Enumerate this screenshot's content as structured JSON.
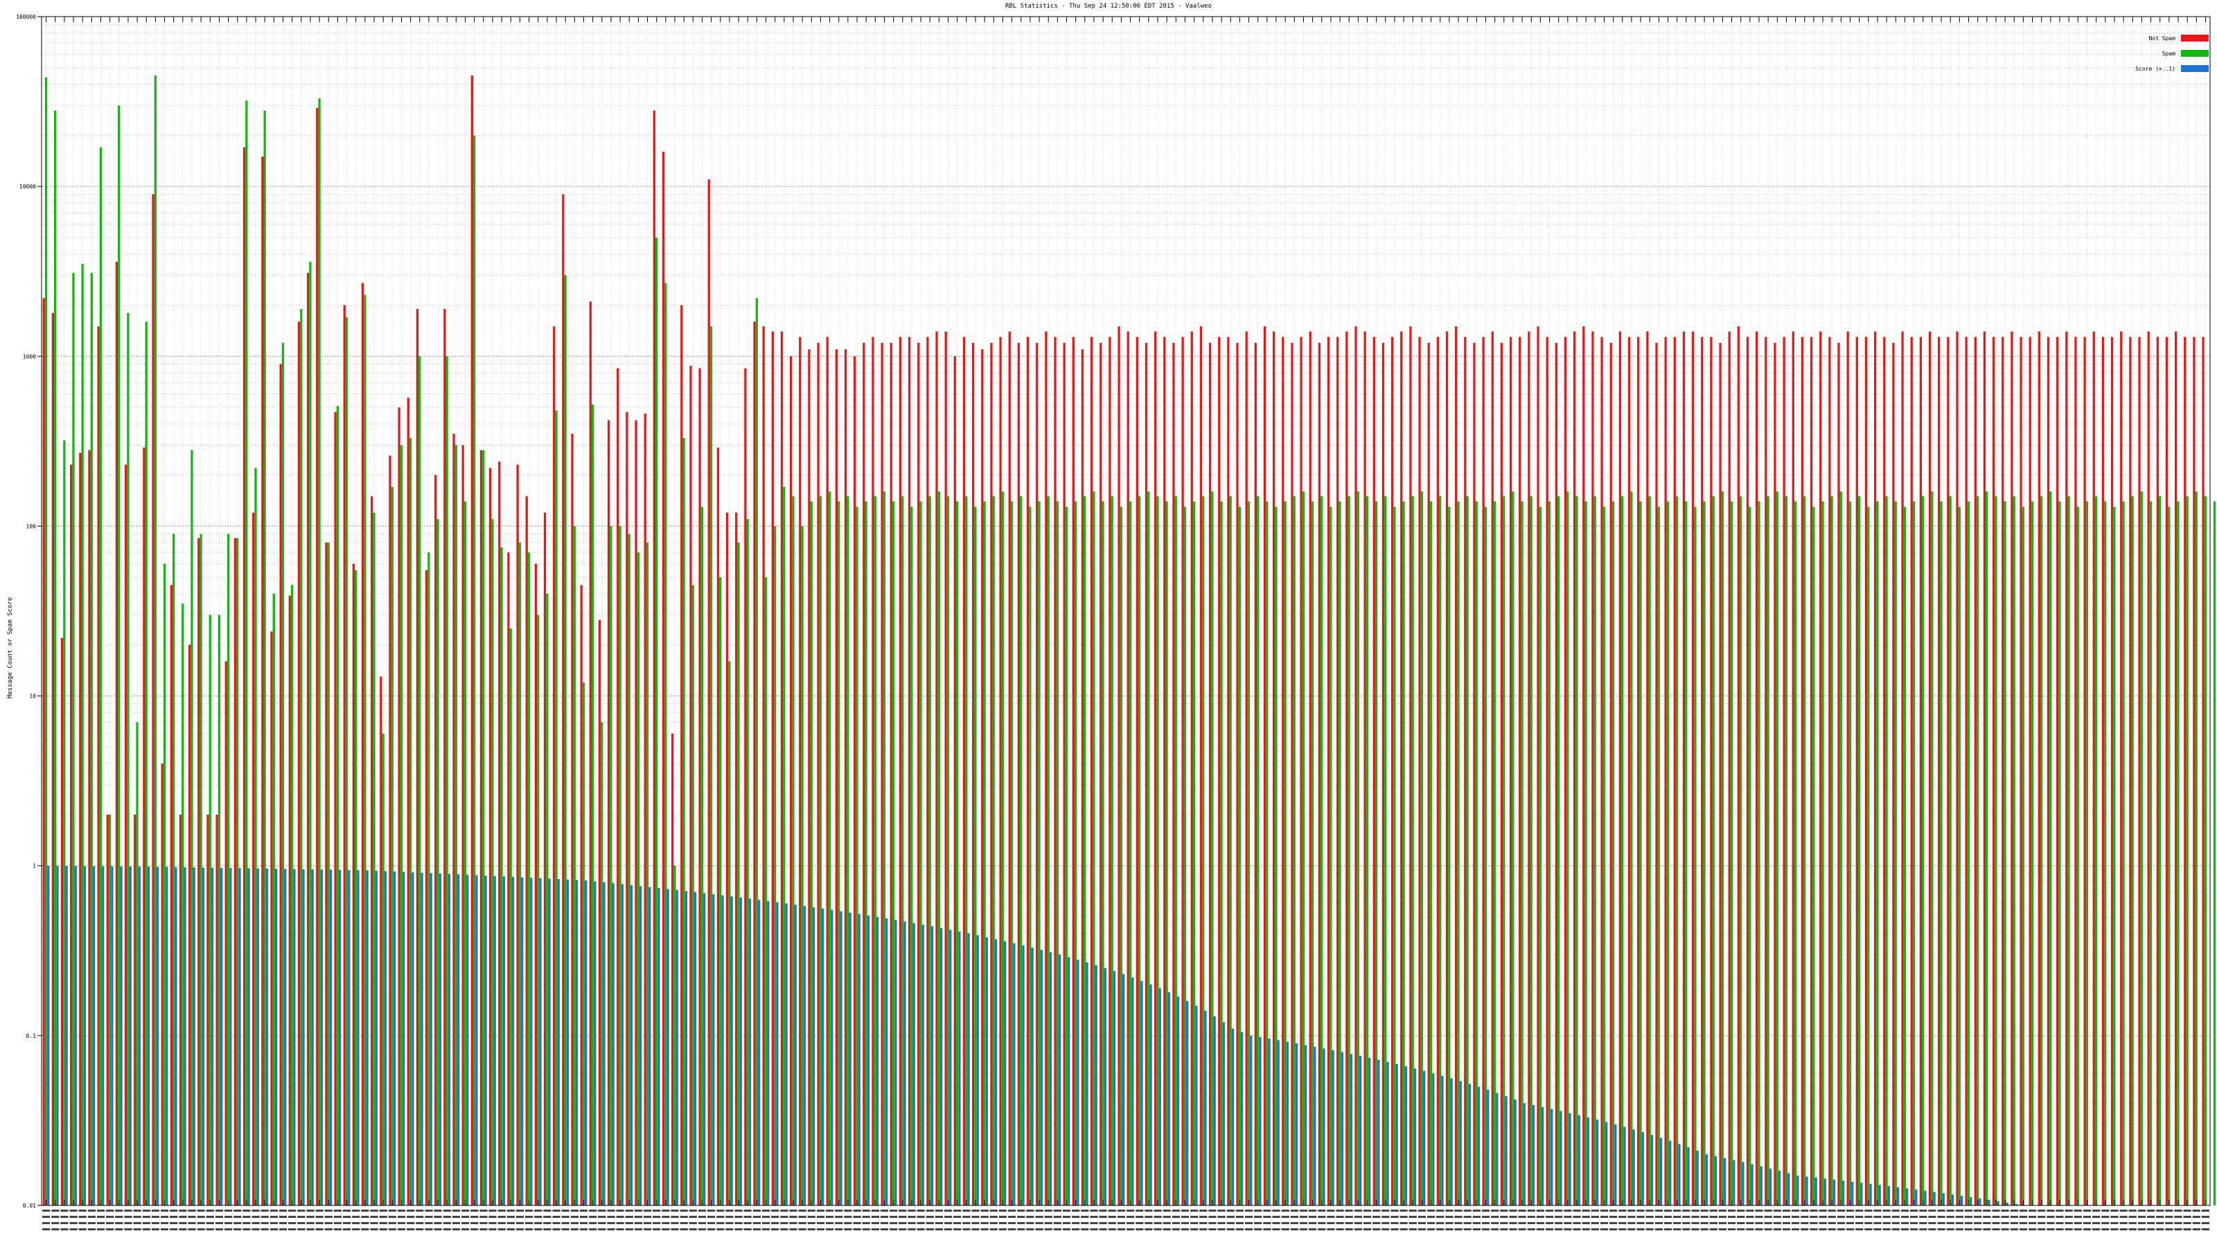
{
  "chart_data": {
    "type": "bar",
    "title": "RBL Statistics - Thu Sep 24 12:50:06 EDT 2015 - Vaalweo",
    "xlabel": "",
    "ylabel": "Message Count or Spam Score",
    "yscale": "log",
    "ylim": [
      0.01,
      100000
    ],
    "y_ticks": [
      "0.01",
      "0.1",
      "1",
      "10",
      "100",
      "1000",
      "10000",
      "100000"
    ],
    "grid": true,
    "legend_position": "top-right",
    "category_labels_legible": false,
    "series": [
      {
        "name": "Not Spam",
        "color": "#e31a1c",
        "values": [
          2200,
          1800,
          22,
          230,
          270,
          280,
          1500,
          2,
          3600,
          230,
          2,
          290,
          9000,
          4,
          45,
          2,
          20,
          85,
          2,
          2,
          16,
          85,
          17000,
          120,
          15000,
          24,
          900,
          39,
          1600,
          3100,
          29000,
          80,
          470,
          2000,
          60,
          2700,
          150,
          13,
          260,
          500,
          570,
          1900,
          55,
          200,
          1900,
          350,
          300,
          45000,
          280,
          220,
          240,
          70,
          230,
          150,
          60,
          120,
          1500,
          9000,
          350,
          45,
          2100,
          28,
          420,
          850,
          470,
          420,
          460,
          28000,
          16000,
          6,
          2000,
          880,
          850,
          11000,
          290,
          120,
          120,
          850,
          1600,
          1500,
          1400,
          1400,
          1000,
          1300,
          1100,
          1200,
          1300,
          1100,
          1100,
          1000,
          1200,
          1300,
          1200,
          1200,
          1300,
          1300,
          1200,
          1300,
          1400,
          1400,
          1000,
          1300,
          1200,
          1100,
          1200,
          1300,
          1400,
          1200,
          1300,
          1200,
          1400,
          1300,
          1200,
          1300,
          1100,
          1300,
          1200,
          1300,
          1500,
          1400,
          1300,
          1200,
          1400,
          1300,
          1200,
          1300,
          1400,
          1500,
          1200,
          1300,
          1300,
          1200,
          1400,
          1200,
          1500,
          1400,
          1300,
          1200,
          1300,
          1400,
          1200,
          1300,
          1300,
          1400,
          1500,
          1400,
          1300,
          1200,
          1300,
          1400,
          1500,
          1300,
          1200,
          1300,
          1400,
          1500,
          1300,
          1200,
          1300,
          1400,
          1200,
          1300,
          1300,
          1400,
          1500,
          1300,
          1200,
          1300,
          1400,
          1500,
          1400,
          1300,
          1200,
          1400,
          1300,
          1300,
          1400,
          1200,
          1300,
          1300,
          1400,
          1400,
          1300,
          1300,
          1200,
          1400,
          1500,
          1300,
          1400,
          1300,
          1200,
          1300,
          1400,
          1300,
          1300,
          1400,
          1300,
          1200,
          1400,
          1300,
          1300,
          1400,
          1300,
          1200,
          1400,
          1300,
          1300,
          1400,
          1300,
          1300,
          1400,
          1300,
          1300,
          1400,
          1300,
          1300,
          1400,
          1300,
          1300,
          1400,
          1300,
          1300,
          1400,
          1300,
          1300,
          1400,
          1300,
          1300,
          1400,
          1300,
          1300,
          1400,
          1300,
          1300,
          1400,
          1300,
          1300,
          1300
        ]
      },
      {
        "name": "Spam",
        "color": "#10b810",
        "values": [
          44000,
          28000,
          320,
          3100,
          3500,
          3100,
          17000,
          2,
          30000,
          1800,
          7,
          1600,
          45000,
          60,
          90,
          35,
          280,
          90,
          30,
          30,
          90,
          85,
          32000,
          220,
          28000,
          40,
          1200,
          45,
          1900,
          3600,
          33000,
          80,
          510,
          1700,
          55,
          2300,
          120,
          6,
          170,
          300,
          330,
          1000,
          70,
          110,
          1000,
          300,
          140,
          20000,
          280,
          110,
          75,
          25,
          80,
          70,
          30,
          40,
          480,
          3000,
          100,
          12,
          520,
          7,
          100,
          100,
          90,
          70,
          80,
          5000,
          2700,
          1,
          330,
          45,
          130,
          1500,
          50,
          16,
          80,
          110,
          2200,
          50,
          100,
          170,
          150,
          100,
          140,
          150,
          160,
          140,
          150,
          130,
          140,
          150,
          160,
          140,
          150,
          130,
          140,
          150,
          160,
          150,
          140,
          150,
          130,
          140,
          150,
          160,
          140,
          150,
          130,
          140,
          150,
          140,
          130,
          140,
          150,
          160,
          140,
          150,
          130,
          140,
          150,
          160,
          150,
          140,
          150,
          130,
          140,
          150,
          160,
          140,
          150,
          130,
          140,
          150,
          140,
          130,
          140,
          150,
          160,
          140,
          150,
          130,
          140,
          150,
          160,
          150,
          140,
          150,
          130,
          140,
          150,
          160,
          140,
          150,
          130,
          140,
          150,
          140,
          130,
          140,
          150,
          160,
          140,
          150,
          130,
          140,
          150,
          160,
          150,
          140,
          150,
          130,
          140,
          150,
          160,
          140,
          150,
          130,
          140,
          150,
          140,
          130,
          140,
          150,
          160,
          140,
          150,
          130,
          140,
          150,
          160,
          150,
          140,
          150,
          130,
          140,
          150,
          160,
          140,
          150,
          130,
          140,
          150,
          140,
          130,
          140,
          150,
          160,
          140,
          150,
          130,
          140,
          150,
          160,
          150,
          140,
          150,
          130,
          140,
          150,
          160,
          140,
          150,
          130,
          140,
          150,
          140,
          130,
          140,
          150,
          160,
          140,
          150,
          130,
          140,
          150,
          160,
          150,
          140,
          150,
          130,
          140,
          150,
          160,
          140,
          150,
          130,
          140,
          150,
          140
        ]
      },
      {
        "name": "Score (×..1)",
        "color": "#1e73d2",
        "values": [
          0.999,
          0.998,
          0.997,
          0.996,
          0.995,
          0.994,
          0.993,
          0.992,
          0.991,
          0.99,
          0.989,
          0.988,
          0.986,
          0.984,
          0.982,
          0.98,
          0.978,
          0.976,
          0.974,
          0.972,
          0.97,
          0.968,
          0.966,
          0.964,
          0.962,
          0.96,
          0.958,
          0.956,
          0.954,
          0.952,
          0.95,
          0.948,
          0.946,
          0.944,
          0.942,
          0.94,
          0.935,
          0.93,
          0.925,
          0.92,
          0.915,
          0.91,
          0.905,
          0.9,
          0.895,
          0.89,
          0.885,
          0.88,
          0.875,
          0.87,
          0.865,
          0.86,
          0.855,
          0.85,
          0.845,
          0.84,
          0.835,
          0.83,
          0.825,
          0.82,
          0.81,
          0.8,
          0.79,
          0.78,
          0.77,
          0.76,
          0.75,
          0.74,
          0.73,
          0.72,
          0.71,
          0.7,
          0.69,
          0.68,
          0.67,
          0.66,
          0.65,
          0.64,
          0.63,
          0.62,
          0.61,
          0.6,
          0.59,
          0.58,
          0.57,
          0.56,
          0.55,
          0.54,
          0.53,
          0.52,
          0.51,
          0.5,
          0.49,
          0.48,
          0.47,
          0.46,
          0.45,
          0.44,
          0.43,
          0.42,
          0.41,
          0.4,
          0.39,
          0.38,
          0.37,
          0.36,
          0.35,
          0.34,
          0.33,
          0.32,
          0.31,
          0.3,
          0.29,
          0.28,
          0.27,
          0.26,
          0.25,
          0.24,
          0.23,
          0.22,
          0.21,
          0.2,
          0.19,
          0.18,
          0.17,
          0.16,
          0.15,
          0.14,
          0.13,
          0.12,
          0.11,
          0.105,
          0.1,
          0.098,
          0.096,
          0.094,
          0.092,
          0.09,
          0.088,
          0.086,
          0.084,
          0.082,
          0.08,
          0.078,
          0.076,
          0.074,
          0.072,
          0.07,
          0.068,
          0.066,
          0.064,
          0.062,
          0.06,
          0.058,
          0.056,
          0.054,
          0.052,
          0.05,
          0.048,
          0.046,
          0.044,
          0.042,
          0.04,
          0.039,
          0.038,
          0.037,
          0.036,
          0.035,
          0.034,
          0.033,
          0.032,
          0.031,
          0.03,
          0.029,
          0.028,
          0.027,
          0.026,
          0.025,
          0.024,
          0.023,
          0.022,
          0.021,
          0.02,
          0.0195,
          0.019,
          0.0185,
          0.018,
          0.0175,
          0.017,
          0.0165,
          0.016,
          0.0155,
          0.015,
          0.0148,
          0.0146,
          0.0144,
          0.0142,
          0.014,
          0.0138,
          0.0136,
          0.0134,
          0.0132,
          0.013,
          0.0128,
          0.0126,
          0.0124,
          0.0122,
          0.012,
          0.0118,
          0.0116,
          0.0114,
          0.0112,
          0.011,
          0.0108,
          0.0106,
          0.0104,
          0.0102,
          0.01,
          0.01,
          0.01,
          0.01,
          0.01,
          0.01,
          0.01,
          0.01,
          0.01,
          0.01,
          0.01,
          0.01,
          0.01,
          0.01,
          0.01,
          0.01,
          0.01,
          0.01,
          0.01,
          0.01,
          0.01,
          0.01,
          0.01,
          0.01,
          0.01,
          0.01,
          0.01,
          0.01,
          0.01,
          0.01
        ]
      }
    ]
  }
}
